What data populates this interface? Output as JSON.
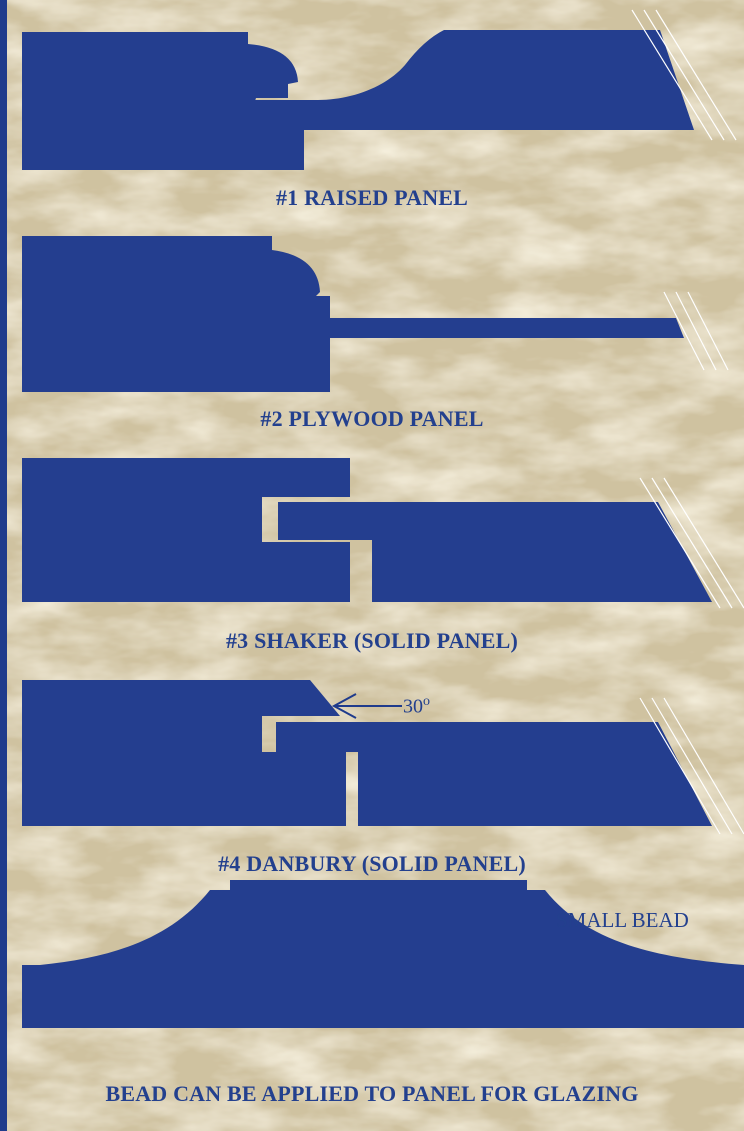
{
  "colors": {
    "profile": "#243e8f",
    "text": "#23408e",
    "background": "#d9cfb4",
    "border": "#1f3b8c"
  },
  "captions": {
    "profile_1": "#1 RAISED PANEL",
    "profile_2": "#2 PLYWOOD PANEL",
    "profile_3": "#3 SHAKER (SOLID PANEL)",
    "profile_4": "#4 DANBURY (SOLID PANEL)",
    "glazing_note": "BEAD CAN BE APPLIED TO PANEL FOR GLAZING"
  },
  "annotations": {
    "angle_label": "30",
    "angle_unit": "o",
    "bead_label": "SMALL BEAD"
  }
}
